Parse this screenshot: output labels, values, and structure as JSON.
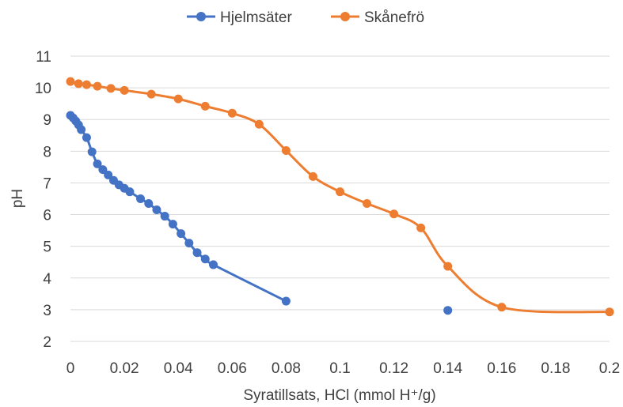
{
  "chart_data": {
    "type": "scatter",
    "xlabel": "Syratillsats, HCl (mmol H⁺/g)",
    "ylabel": "pH",
    "xlim": [
      0,
      0.2
    ],
    "ylim": [
      2,
      11
    ],
    "x_ticks": [
      0,
      0.02,
      0.04,
      0.06,
      0.08,
      0.1,
      0.12,
      0.14,
      0.16,
      0.18,
      0.2
    ],
    "x_tick_labels": [
      "0",
      "0.02",
      "0.04",
      "0.06",
      "0.08",
      "0.1",
      "0.12",
      "0.14",
      "0.16",
      "0.18",
      "0.2"
    ],
    "y_ticks": [
      2,
      3,
      4,
      5,
      6,
      7,
      8,
      9,
      10,
      11
    ],
    "y_tick_labels": [
      "2",
      "3",
      "4",
      "5",
      "6",
      "7",
      "8",
      "9",
      "10",
      "11"
    ],
    "grid": "horizontal",
    "legend_position": "top",
    "series": [
      {
        "name": "Hjelmsäter",
        "color": "#4472c4",
        "line_points": 25,
        "points": [
          [
            0,
            9.13
          ],
          [
            0.001,
            9.05
          ],
          [
            0.002,
            8.95
          ],
          [
            0.003,
            8.83
          ],
          [
            0.004,
            8.68
          ],
          [
            0.006,
            8.43
          ],
          [
            0.008,
            7.98
          ],
          [
            0.01,
            7.6
          ],
          [
            0.012,
            7.42
          ],
          [
            0.014,
            7.25
          ],
          [
            0.016,
            7.08
          ],
          [
            0.018,
            6.94
          ],
          [
            0.02,
            6.83
          ],
          [
            0.022,
            6.72
          ],
          [
            0.026,
            6.5
          ],
          [
            0.029,
            6.35
          ],
          [
            0.032,
            6.15
          ],
          [
            0.035,
            5.95
          ],
          [
            0.038,
            5.7
          ],
          [
            0.041,
            5.4
          ],
          [
            0.044,
            5.1
          ],
          [
            0.047,
            4.8
          ],
          [
            0.05,
            4.6
          ],
          [
            0.053,
            4.42
          ],
          [
            0.08,
            3.27
          ],
          [
            0.14,
            2.98
          ]
        ]
      },
      {
        "name": "Skånefrö",
        "color": "#ed7d31",
        "line_points": 22,
        "points": [
          [
            0,
            10.2
          ],
          [
            0.003,
            10.13
          ],
          [
            0.006,
            10.1
          ],
          [
            0.01,
            10.05
          ],
          [
            0.015,
            9.98
          ],
          [
            0.02,
            9.92
          ],
          [
            0.03,
            9.8
          ],
          [
            0.04,
            9.65
          ],
          [
            0.05,
            9.42
          ],
          [
            0.06,
            9.2
          ],
          [
            0.07,
            8.85
          ],
          [
            0.08,
            8.02
          ],
          [
            0.09,
            7.2
          ],
          [
            0.1,
            6.72
          ],
          [
            0.11,
            6.35
          ],
          [
            0.12,
            6.02
          ],
          [
            0.13,
            5.58
          ],
          [
            0.14,
            4.37
          ],
          [
            0.16,
            3.08
          ],
          [
            0.2,
            2.93
          ]
        ]
      }
    ]
  }
}
